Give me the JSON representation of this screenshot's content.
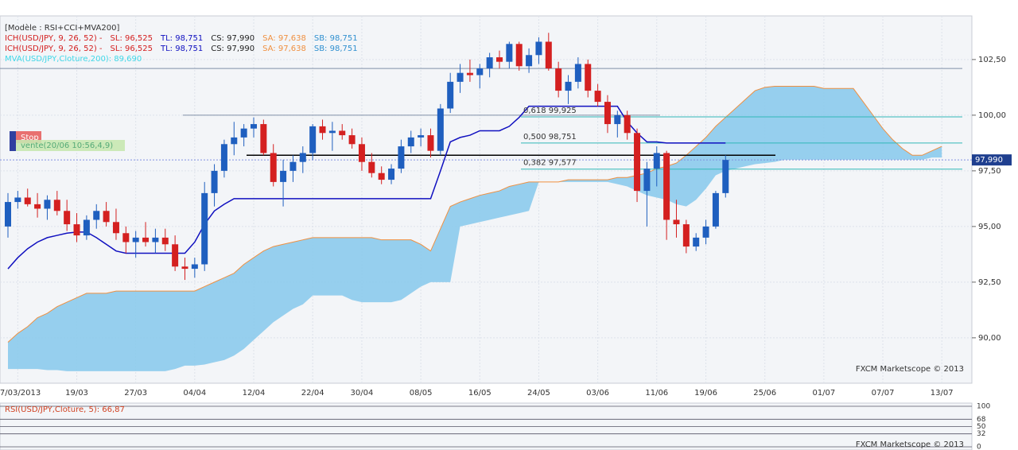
{
  "chart_data": {
    "type": "candlestick",
    "header": [
      "[Modèle : RSI+CCI+MVA200]",
      [
        {
          "text": "ICH(USD/JPY, 9, 26, 52) -",
          "color": "#d42020"
        },
        {
          "text": "SL: 96,525",
          "color": "#d42020"
        },
        {
          "text": "TL: 98,751",
          "color": "#1010c0"
        },
        {
          "text": "CS: 97,990",
          "color": "#222222"
        },
        {
          "text": "SA: 97,638",
          "color": "#f09040"
        },
        {
          "text": "SB: 98,751",
          "color": "#3090d0"
        }
      ],
      [
        {
          "text": "ICH(USD/JPY, 9, 26, 52) -",
          "color": "#d42020"
        },
        {
          "text": "SL: 96,525",
          "color": "#d42020"
        },
        {
          "text": "TL: 98,751",
          "color": "#1010c0"
        },
        {
          "text": "CS: 97,990",
          "color": "#222222"
        },
        {
          "text": "SA: 97,638",
          "color": "#f09040"
        },
        {
          "text": "SB: 98,751",
          "color": "#3090d0"
        }
      ],
      "MVA(USD/JPY,Cloture,200): 89,690"
    ],
    "categories": [
      null,
      "07/03/2013",
      null,
      null,
      null,
      null,
      null,
      "19/03",
      null,
      null,
      null,
      null,
      null,
      "27/03",
      null,
      null,
      null,
      null,
      null,
      "04/04",
      null,
      null,
      null,
      null,
      null,
      "12/04",
      null,
      null,
      null,
      null,
      null,
      "22/04",
      null,
      null,
      null,
      null,
      "30/04",
      null,
      null,
      null,
      null,
      null,
      "08/05",
      null,
      null,
      null,
      null,
      null,
      "16/05",
      null,
      null,
      null,
      null,
      null,
      "24/05",
      null,
      null,
      null,
      null,
      null,
      "03/06",
      null,
      null,
      null,
      null,
      null,
      "11/06",
      null,
      null,
      null,
      null,
      "19/06",
      null,
      null,
      null,
      null,
      null,
      "25/06",
      null,
      null,
      null,
      null,
      null,
      "01/07",
      null,
      null,
      null,
      null,
      null,
      "07/07",
      null,
      null,
      null,
      null,
      null,
      "13/07"
    ],
    "open": [
      95.0,
      96.1,
      96.3,
      96.0,
      95.8,
      96.2,
      95.7,
      95.1,
      94.6,
      95.3,
      95.7,
      95.2,
      94.7,
      94.3,
      94.5,
      94.3,
      94.5,
      94.2,
      93.2,
      93.1,
      93.3,
      96.5,
      97.5,
      98.7,
      99.0,
      99.4,
      99.6,
      98.3,
      97.0,
      97.5,
      97.9,
      98.3,
      99.5,
      99.2,
      99.3,
      99.1,
      98.7,
      97.9,
      97.4,
      97.1,
      97.6,
      98.6,
      99.0,
      99.1,
      98.4,
      100.3,
      101.5,
      101.9,
      101.8,
      102.1,
      102.6,
      102.4,
      103.2,
      102.2,
      102.7,
      103.3,
      102.1,
      101.1,
      101.5,
      102.3,
      101.1,
      100.6,
      99.6,
      100.0,
      99.2,
      96.6,
      97.6,
      98.3,
      95.3,
      95.1,
      94.1,
      94.5,
      95.0,
      96.5,
      null,
      null,
      null,
      null,
      null,
      null,
      null,
      null,
      null,
      null,
      null,
      null,
      null,
      null,
      null,
      null,
      null,
      null,
      null,
      null,
      null,
      null
    ],
    "high": [
      96.5,
      96.6,
      96.7,
      96.5,
      96.4,
      96.6,
      96.2,
      95.6,
      95.5,
      96.0,
      96.1,
      95.8,
      95.0,
      94.8,
      95.2,
      94.9,
      94.9,
      94.6,
      93.6,
      93.6,
      97.0,
      97.8,
      98.9,
      99.7,
      99.6,
      99.9,
      99.8,
      98.7,
      98.0,
      98.2,
      98.6,
      99.6,
      99.8,
      99.7,
      99.6,
      99.4,
      99.0,
      98.3,
      97.7,
      97.8,
      98.9,
      99.3,
      99.4,
      99.4,
      100.5,
      101.9,
      102.3,
      102.5,
      102.3,
      102.8,
      102.9,
      103.3,
      103.3,
      103.0,
      103.5,
      103.7,
      102.4,
      101.8,
      102.6,
      102.5,
      101.4,
      100.9,
      100.2,
      100.2,
      99.4,
      97.9,
      98.6,
      98.4,
      96.2,
      95.3,
      94.7,
      95.3,
      96.6,
      98.2,
      null,
      null,
      null,
      null,
      null,
      null,
      null,
      null,
      null,
      null,
      null,
      null,
      null,
      null,
      null,
      null,
      null,
      null,
      null,
      null,
      null,
      null
    ],
    "low": [
      94.5,
      95.8,
      95.9,
      95.4,
      95.3,
      95.5,
      94.8,
      94.3,
      94.4,
      94.9,
      95.0,
      94.4,
      93.8,
      93.6,
      94.1,
      93.8,
      93.9,
      93.0,
      92.6,
      92.7,
      93.0,
      95.9,
      97.2,
      98.2,
      98.6,
      99.0,
      98.2,
      96.8,
      95.9,
      97.0,
      97.4,
      98.0,
      98.9,
      98.4,
      98.9,
      98.5,
      97.5,
      97.2,
      96.9,
      96.9,
      97.4,
      98.3,
      98.6,
      98.1,
      98.2,
      100.1,
      101.0,
      101.5,
      101.2,
      101.7,
      102.1,
      102.1,
      102.0,
      101.9,
      102.3,
      102.0,
      100.8,
      100.5,
      101.2,
      100.8,
      100.4,
      99.2,
      99.0,
      98.9,
      96.1,
      95.0,
      96.8,
      94.4,
      94.5,
      93.8,
      93.9,
      94.2,
      94.9,
      96.3,
      null,
      null,
      null,
      null,
      null,
      null,
      null,
      null,
      null,
      null,
      null,
      null,
      null,
      null,
      null,
      null,
      null,
      null,
      null,
      null,
      null,
      null
    ],
    "close": [
      96.1,
      96.3,
      96.0,
      95.8,
      96.2,
      95.7,
      95.1,
      94.6,
      95.3,
      95.7,
      95.2,
      94.7,
      94.3,
      94.5,
      94.3,
      94.5,
      94.2,
      93.2,
      93.1,
      93.3,
      96.5,
      97.5,
      98.7,
      99.0,
      99.4,
      99.6,
      98.3,
      97.0,
      97.5,
      97.9,
      98.3,
      99.5,
      99.2,
      99.3,
      99.1,
      98.7,
      97.9,
      97.4,
      97.1,
      97.6,
      98.6,
      99.0,
      99.1,
      98.4,
      100.3,
      101.5,
      101.9,
      101.8,
      102.1,
      102.6,
      102.4,
      103.2,
      102.2,
      102.7,
      103.3,
      102.1,
      101.1,
      101.5,
      102.3,
      101.1,
      100.6,
      99.6,
      100.0,
      99.2,
      96.6,
      97.6,
      98.3,
      95.3,
      95.1,
      94.1,
      94.5,
      95.0,
      96.5,
      97.99,
      null,
      null,
      null,
      null,
      null,
      null,
      null,
      null,
      null,
      null,
      null,
      null,
      null,
      null,
      null,
      null,
      null,
      null,
      null,
      null,
      null,
      null
    ],
    "up_color": "#1f5fbf",
    "down_color": "#d42020",
    "cloud": {
      "color": "#8ccbec",
      "edge_color": "#f09040",
      "upper": [
        89.8,
        90.2,
        90.5,
        90.9,
        91.1,
        91.4,
        91.6,
        91.8,
        92.0,
        92.0,
        92.0,
        92.1,
        92.1,
        92.1,
        92.1,
        92.1,
        92.1,
        92.1,
        92.1,
        92.1,
        92.3,
        92.5,
        92.7,
        92.9,
        93.3,
        93.6,
        93.9,
        94.1,
        94.2,
        94.3,
        94.4,
        94.5,
        94.5,
        94.5,
        94.5,
        94.5,
        94.5,
        94.5,
        94.4,
        94.4,
        94.4,
        94.4,
        94.2,
        93.9,
        94.9,
        95.9,
        96.1,
        96.25,
        96.4,
        96.5,
        96.6,
        96.8,
        96.9,
        97.0,
        97.0,
        97.0,
        97.0,
        97.1,
        97.1,
        97.1,
        97.1,
        97.1,
        97.2,
        97.2,
        97.3,
        97.4,
        97.6,
        97.7,
        97.85,
        98.2,
        98.6,
        99.0,
        99.5,
        99.9,
        100.3,
        100.7,
        101.1,
        101.25,
        101.3,
        101.3,
        101.3,
        101.3,
        101.3,
        101.2,
        101.2,
        101.2,
        101.2,
        100.6,
        100.0,
        99.4,
        98.9,
        98.5,
        98.2,
        98.2,
        98.4,
        98.6
      ],
      "lower": [
        88.6,
        88.6,
        88.6,
        88.6,
        88.55,
        88.55,
        88.5,
        88.5,
        88.5,
        88.5,
        88.5,
        88.5,
        88.5,
        88.5,
        88.5,
        88.5,
        88.5,
        88.6,
        88.75,
        88.75,
        88.8,
        88.9,
        89.0,
        89.2,
        89.5,
        89.9,
        90.3,
        90.7,
        91.0,
        91.3,
        91.5,
        91.9,
        91.9,
        91.9,
        91.9,
        91.7,
        91.6,
        91.6,
        91.6,
        91.6,
        91.7,
        92.0,
        92.3,
        92.5,
        92.5,
        92.5,
        95.0,
        95.1,
        95.2,
        95.3,
        95.4,
        95.5,
        95.6,
        95.7,
        97.0,
        97.0,
        97.0,
        97.0,
        97.0,
        97.0,
        97.0,
        97.0,
        96.9,
        96.8,
        96.6,
        96.4,
        96.3,
        96.2,
        96.0,
        95.9,
        96.2,
        96.7,
        97.3,
        97.5,
        97.6,
        97.7,
        97.8,
        97.85,
        97.9,
        98.0,
        98.0,
        98.0,
        98.0,
        98.0,
        98.0,
        98.0,
        98.0,
        98.0,
        98.0,
        98.0,
        98.0,
        98.0,
        98.0,
        98.0,
        98.1,
        98.1
      ]
    },
    "kijun": {
      "color": "#1010c0",
      "values": [
        93.1,
        93.6,
        94.0,
        94.3,
        94.5,
        94.6,
        94.7,
        94.75,
        94.75,
        94.5,
        94.2,
        93.9,
        93.8,
        93.8,
        93.8,
        93.8,
        93.8,
        93.8,
        93.8,
        94.3,
        95.1,
        95.7,
        96.0,
        96.25,
        96.25,
        96.25,
        96.25,
        96.25,
        96.25,
        96.25,
        96.25,
        96.25,
        96.25,
        96.25,
        96.25,
        96.25,
        96.25,
        96.25,
        96.25,
        96.25,
        96.25,
        96.25,
        96.25,
        96.25,
        97.5,
        98.8,
        99.0,
        99.1,
        99.3,
        99.3,
        99.3,
        99.5,
        99.9,
        100.4,
        100.4,
        100.4,
        100.4,
        100.4,
        100.4,
        100.4,
        100.4,
        100.4,
        100.4,
        99.7,
        99.2,
        98.8,
        98.8,
        98.75,
        98.75,
        98.75,
        98.75,
        98.75,
        98.75,
        98.75,
        null,
        null,
        null,
        null,
        null,
        null,
        null,
        null,
        null,
        null,
        null,
        null,
        null,
        null,
        null,
        null,
        null,
        null,
        null,
        null,
        null,
        null
      ]
    },
    "levels": [
      {
        "value": 99.925,
        "label": "0,618 99,925",
        "color": "#30b8b8"
      },
      {
        "value": 98.751,
        "label": "0,500 98,751",
        "color": "#30b8b8"
      },
      {
        "value": 97.577,
        "label": "0,382 97,577",
        "color": "#30b8b8"
      }
    ],
    "hlines": [
      {
        "value": 98.2,
        "color": "#000000"
      },
      {
        "value": 100.0,
        "color": "#8090a8"
      },
      {
        "value": 102.1,
        "color": "#8090a8"
      }
    ],
    "price": {
      "value": 97.99,
      "label": "97,990"
    },
    "annotations": [
      "Stop",
      "vente(20/06 10:56,4,9)"
    ],
    "ylim": [
      87.96,
      104.46
    ],
    "yticks": [
      {
        "value": 102.5,
        "label": "102,50"
      },
      {
        "value": 100,
        "label": "100,00"
      },
      {
        "value": 97.5,
        "label": "97,50"
      },
      {
        "value": 95,
        "label": "95,00"
      },
      {
        "value": 92.5,
        "label": "92,50"
      },
      {
        "value": 90,
        "label": "90,00"
      }
    ],
    "watermark": "FXCM Marketscope © 2013",
    "rsi": {
      "label": "RSI(USD/JPY,Cloture, 5): 66,87",
      "ylim": [
        0,
        100
      ],
      "yticks": [
        100,
        68,
        50,
        32,
        0
      ]
    }
  }
}
